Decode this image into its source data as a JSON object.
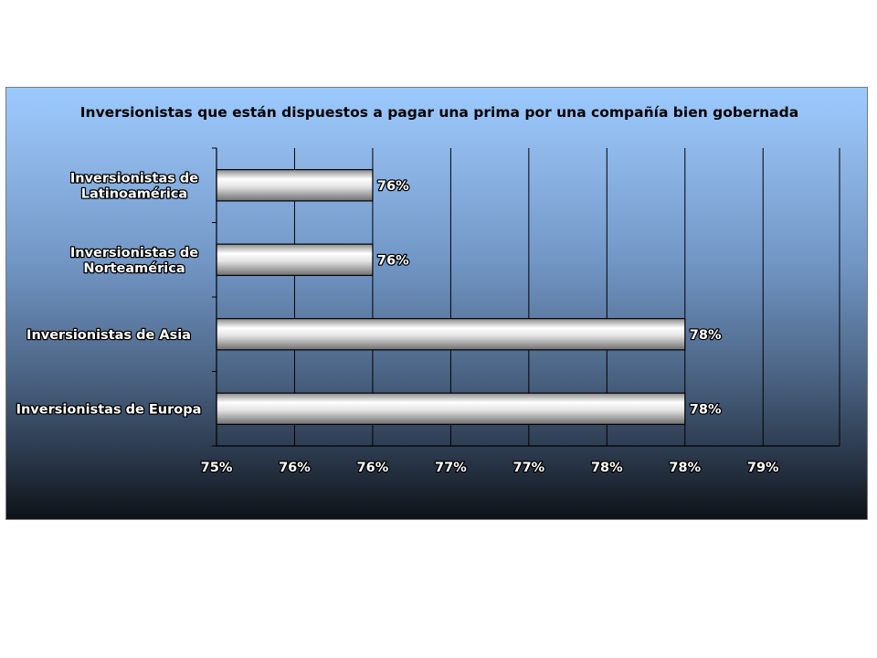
{
  "chart_data": {
    "type": "bar",
    "orientation": "horizontal",
    "title": "Inversionistas que están dispuestos a pagar una prima por una compañía bien gobernada",
    "categories": [
      [
        "Inversionistas de",
        "Latinoamérica"
      ],
      [
        "Inversionistas de",
        "Norteamérica"
      ],
      [
        "Inversionistas de Asia"
      ],
      [
        "Inversionistas de Europa"
      ]
    ],
    "values": [
      76,
      76,
      78,
      78
    ],
    "value_labels": [
      "76%",
      "76%",
      "78%",
      "78%"
    ],
    "xlim": [
      75,
      78.99
    ],
    "xticks": [
      75,
      75.5,
      76,
      76.5,
      77,
      77.5,
      78,
      78.5
    ],
    "xtick_labels": [
      "75%",
      "76%",
      "76%",
      "77%",
      "77%",
      "78%",
      "78%",
      "79%"
    ],
    "grid": true,
    "legend": "none",
    "colors": {
      "bar_light": "#ffffff",
      "bar_dark": "#6e6e6e",
      "grid": "#000000",
      "background_top": "#9ccaff",
      "background_bottom": "#0e1218"
    }
  }
}
